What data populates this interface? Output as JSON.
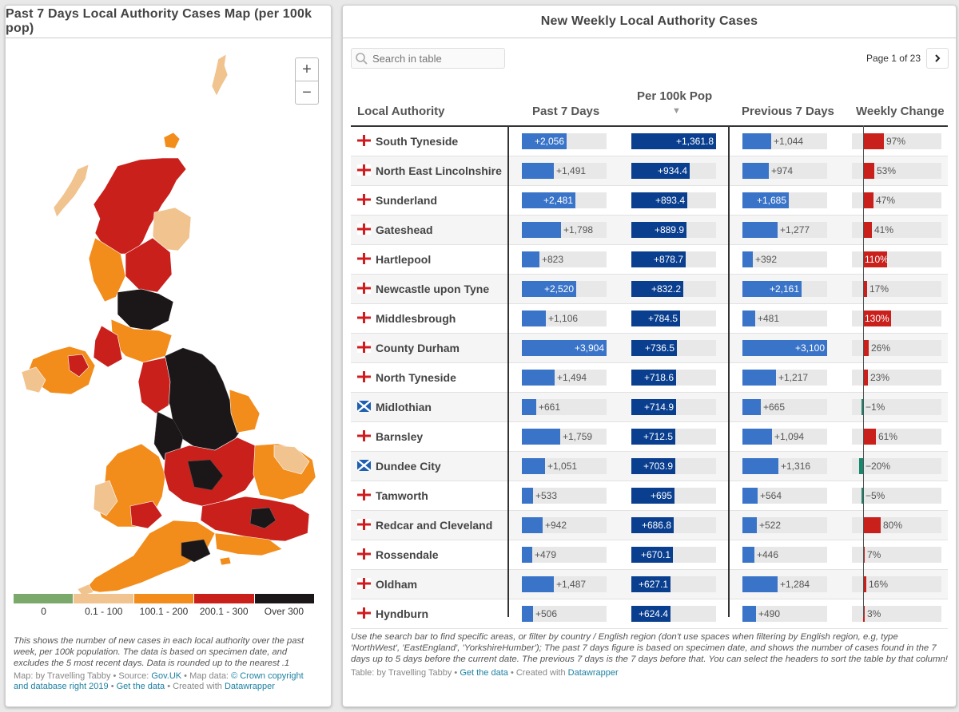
{
  "map_panel": {
    "title": "Past 7 Days Local Authority Cases Map (per 100k pop)",
    "zoom_in": "+",
    "zoom_out": "−",
    "legend": [
      {
        "label": "0",
        "color": "#7aa96b"
      },
      {
        "label": "0.1 - 100",
        "color": "#f0c38f"
      },
      {
        "label": "100.1 - 200",
        "color": "#f28c1a"
      },
      {
        "label": "200.1 - 300",
        "color": "#c9201c"
      },
      {
        "label": "Over 300",
        "color": "#1b1618"
      }
    ],
    "description": "This shows the number of new cases in each local authority over the past week, per 100k population. The data is based on specimen date, and excludes the 5 most recent days. Data is rounded up to the nearest .1",
    "credit": {
      "map_by": "Map: by Travelling Tabby • Source: ",
      "source_link": "Gov.UK",
      "map_data": " • Map data: ",
      "map_data_link": "© Crown copyright and database right 2019",
      "sep": " • ",
      "get_data": "Get the data",
      "created": " • Created with ",
      "dw": "Datawrapper"
    }
  },
  "table_panel": {
    "title": "New Weekly Local Authority Cases",
    "search_placeholder": "Search in table",
    "pager": "Page 1 of 23",
    "headers": {
      "la": "Local Authority",
      "p7": "Past 7 Days",
      "per100k": "Per 100k Pop",
      "prev7": "Previous 7 Days",
      "change": "Weekly Change"
    },
    "sort_indicator": "▼",
    "rows": [
      {
        "flag": "england",
        "name": "South Tyneside",
        "p7": 2056,
        "p7_label": "+2,056",
        "per100k": 1361.8,
        "per100k_label": "+1,361.8",
        "prev7": 1044,
        "prev7_label": "+1,044",
        "change": 97,
        "change_label": "97%"
      },
      {
        "flag": "england",
        "name": "North East Lincolnshire",
        "p7": 1491,
        "p7_label": "+1,491",
        "per100k": 934.4,
        "per100k_label": "+934.4",
        "prev7": 974,
        "prev7_label": "+974",
        "change": 53,
        "change_label": "53%"
      },
      {
        "flag": "england",
        "name": "Sunderland",
        "p7": 2481,
        "p7_label": "+2,481",
        "per100k": 893.4,
        "per100k_label": "+893.4",
        "prev7": 1685,
        "prev7_label": "+1,685",
        "change": 47,
        "change_label": "47%"
      },
      {
        "flag": "england",
        "name": "Gateshead",
        "p7": 1798,
        "p7_label": "+1,798",
        "per100k": 889.9,
        "per100k_label": "+889.9",
        "prev7": 1277,
        "prev7_label": "+1,277",
        "change": 41,
        "change_label": "41%"
      },
      {
        "flag": "england",
        "name": "Hartlepool",
        "p7": 823,
        "p7_label": "+823",
        "per100k": 878.7,
        "per100k_label": "+878.7",
        "prev7": 392,
        "prev7_label": "+392",
        "change": 110,
        "change_label": "110%"
      },
      {
        "flag": "england",
        "name": "Newcastle upon Tyne",
        "p7": 2520,
        "p7_label": "+2,520",
        "per100k": 832.2,
        "per100k_label": "+832.2",
        "prev7": 2161,
        "prev7_label": "+2,161",
        "change": 17,
        "change_label": "17%"
      },
      {
        "flag": "england",
        "name": "Middlesbrough",
        "p7": 1106,
        "p7_label": "+1,106",
        "per100k": 784.5,
        "per100k_label": "+784.5",
        "prev7": 481,
        "prev7_label": "+481",
        "change": 130,
        "change_label": "130%"
      },
      {
        "flag": "england",
        "name": "County Durham",
        "p7": 3904,
        "p7_label": "+3,904",
        "per100k": 736.5,
        "per100k_label": "+736.5",
        "prev7": 3100,
        "prev7_label": "+3,100",
        "change": 26,
        "change_label": "26%"
      },
      {
        "flag": "england",
        "name": "North Tyneside",
        "p7": 1494,
        "p7_label": "+1,494",
        "per100k": 718.6,
        "per100k_label": "+718.6",
        "prev7": 1217,
        "prev7_label": "+1,217",
        "change": 23,
        "change_label": "23%"
      },
      {
        "flag": "scotland",
        "name": "Midlothian",
        "p7": 661,
        "p7_label": "+661",
        "per100k": 714.9,
        "per100k_label": "+714.9",
        "prev7": 665,
        "prev7_label": "+665",
        "change": -1,
        "change_label": "−1%"
      },
      {
        "flag": "england",
        "name": "Barnsley",
        "p7": 1759,
        "p7_label": "+1,759",
        "per100k": 712.5,
        "per100k_label": "+712.5",
        "prev7": 1094,
        "prev7_label": "+1,094",
        "change": 61,
        "change_label": "61%"
      },
      {
        "flag": "scotland",
        "name": "Dundee City",
        "p7": 1051,
        "p7_label": "+1,051",
        "per100k": 703.9,
        "per100k_label": "+703.9",
        "prev7": 1316,
        "prev7_label": "+1,316",
        "change": -20,
        "change_label": "−20%"
      },
      {
        "flag": "england",
        "name": "Tamworth",
        "p7": 533,
        "p7_label": "+533",
        "per100k": 695,
        "per100k_label": "+695",
        "prev7": 564,
        "prev7_label": "+564",
        "change": -5,
        "change_label": "−5%"
      },
      {
        "flag": "england",
        "name": "Redcar and Cleveland",
        "p7": 942,
        "p7_label": "+942",
        "per100k": 686.8,
        "per100k_label": "+686.8",
        "prev7": 522,
        "prev7_label": "+522",
        "change": 80,
        "change_label": "80%"
      },
      {
        "flag": "england",
        "name": "Rossendale",
        "p7": 479,
        "p7_label": "+479",
        "per100k": 670.1,
        "per100k_label": "+670.1",
        "prev7": 446,
        "prev7_label": "+446",
        "change": 7,
        "change_label": "7%"
      },
      {
        "flag": "england",
        "name": "Oldham",
        "p7": 1487,
        "p7_label": "+1,487",
        "per100k": 627.1,
        "per100k_label": "+627.1",
        "prev7": 1284,
        "prev7_label": "+1,284",
        "change": 16,
        "change_label": "16%"
      },
      {
        "flag": "england",
        "name": "Hyndburn",
        "p7": 506,
        "p7_label": "+506",
        "per100k": 624.4,
        "per100k_label": "+624.4",
        "prev7": 490,
        "prev7_label": "+490",
        "change": 3,
        "change_label": "3%"
      }
    ],
    "colors": {
      "p7_bar": "#3a74c8",
      "per100k_bar": "#0a3f8f",
      "prev7_bar": "#3a74c8",
      "increase": "#c9201c",
      "decrease": "#15896b",
      "track": "#e8e8e8"
    },
    "description": "Use the search bar to find specific areas, or filter by country / English region (don't use spaces when filtering by English region, e.g, type 'NorthWest', 'EastEngland', 'YorkshireHumber'); The past 7 days figure is based on specimen date, and shows the number of cases found in the 7 days up to 5 days before the current date. The previous 7 days is the 7 days before that. You can select the headers to sort the table by that column!",
    "credit": {
      "table_by": "Table: by Travelling Tabby • ",
      "get_data": "Get the data",
      "created": " • Created with ",
      "dw": "Datawrapper"
    }
  }
}
